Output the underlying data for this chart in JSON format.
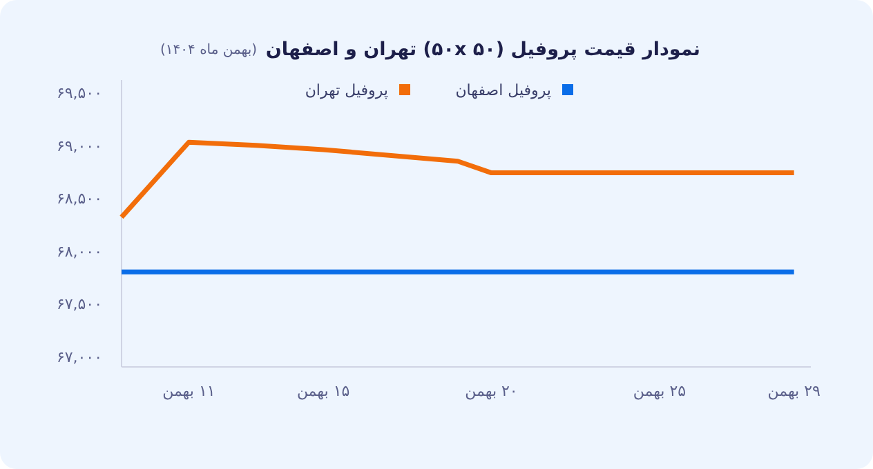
{
  "chart_data": {
    "type": "line",
    "title": "نمودار قیمت پروفیل (۵۰x ۵۰) تهران و اصفهان",
    "subtitle": "(بهمن ماه ۱۴۰۴)",
    "x": [
      9,
      11,
      13,
      15,
      19,
      20,
      29
    ],
    "series": [
      {
        "name": "پروفیل اصفهان",
        "color": "#0a6de8",
        "values": [
          67800,
          67800,
          67800,
          67800,
          67800,
          67800,
          67800
        ]
      },
      {
        "name": "پروفیل تهران",
        "color": "#f26d0a",
        "values": [
          68320,
          69030,
          69000,
          68960,
          68850,
          68740,
          68740
        ]
      }
    ],
    "xlim": [
      9,
      29.5
    ],
    "xticks": [
      {
        "value": 11,
        "label": "۱۱ بهمن"
      },
      {
        "value": 15,
        "label": "۱۵ بهمن"
      },
      {
        "value": 20,
        "label": "۲۰ بهمن"
      },
      {
        "value": 25,
        "label": "۲۵ بهمن"
      },
      {
        "value": 29,
        "label": "۲۹ بهمن"
      }
    ],
    "ylim": [
      66900,
      69620
    ],
    "yticks": [
      {
        "value": 67000,
        "label": "۶۷,۰۰۰"
      },
      {
        "value": 67500,
        "label": "۶۷,۵۰۰"
      },
      {
        "value": 68000,
        "label": "۶۸,۰۰۰"
      },
      {
        "value": 68500,
        "label": "۶۸,۵۰۰"
      },
      {
        "value": 69000,
        "label": "۶۹,۰۰۰"
      },
      {
        "value": 69500,
        "label": "۶۹,۵۰۰"
      }
    ],
    "legend": "top"
  }
}
